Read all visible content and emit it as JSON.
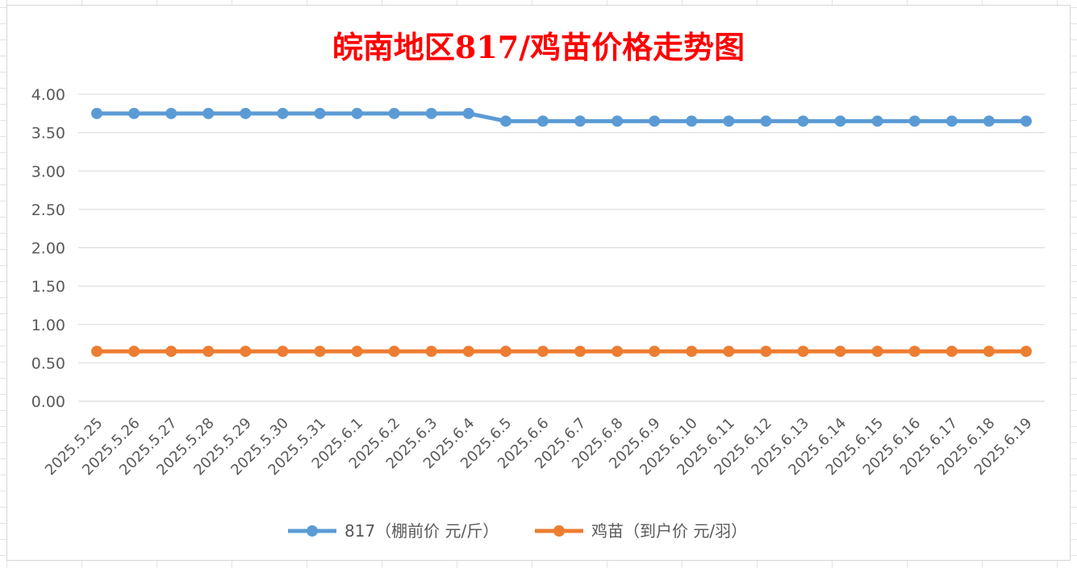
{
  "chart_data": {
    "type": "line",
    "title": "皖南地区817/鸡苗价格走势图",
    "xlabel": "",
    "ylabel": "",
    "ylim": [
      0,
      4
    ],
    "yticks": [
      "0.00",
      "0.50",
      "1.00",
      "1.50",
      "2.00",
      "2.50",
      "3.00",
      "3.50",
      "4.00"
    ],
    "grid": true,
    "legend_position": "bottom",
    "categories": [
      "2025.5.25",
      "2025.5.26",
      "2025.5.27",
      "2025.5.28",
      "2025.5.29",
      "2025.5.30",
      "2025.5.31",
      "2025.6.1",
      "2025.6.2",
      "2025.6.3",
      "2025.6.4",
      "2025.6.5",
      "2025.6.6",
      "2025.6.7",
      "2025.6.8",
      "2025.6.9",
      "2025.6.10",
      "2025.6.11",
      "2025.6.12",
      "2025.6.13",
      "2025.6.14",
      "2025.6.15",
      "2025.6.16",
      "2025.6.17",
      "2025.6.18",
      "2025.6.19"
    ],
    "series": [
      {
        "name": "817（棚前价 元/斤）",
        "color": "#5b9bd5",
        "values": [
          3.75,
          3.75,
          3.75,
          3.75,
          3.75,
          3.75,
          3.75,
          3.75,
          3.75,
          3.75,
          3.75,
          3.65,
          3.65,
          3.65,
          3.65,
          3.65,
          3.65,
          3.65,
          3.65,
          3.65,
          3.65,
          3.65,
          3.65,
          3.65,
          3.65,
          3.65
        ]
      },
      {
        "name": "鸡苗（到户价 元/羽）",
        "color": "#ed7d31",
        "values": [
          0.65,
          0.65,
          0.65,
          0.65,
          0.65,
          0.65,
          0.65,
          0.65,
          0.65,
          0.65,
          0.65,
          0.65,
          0.65,
          0.65,
          0.65,
          0.65,
          0.65,
          0.65,
          0.65,
          0.65,
          0.65,
          0.65,
          0.65,
          0.65,
          0.65,
          0.65
        ]
      }
    ]
  }
}
